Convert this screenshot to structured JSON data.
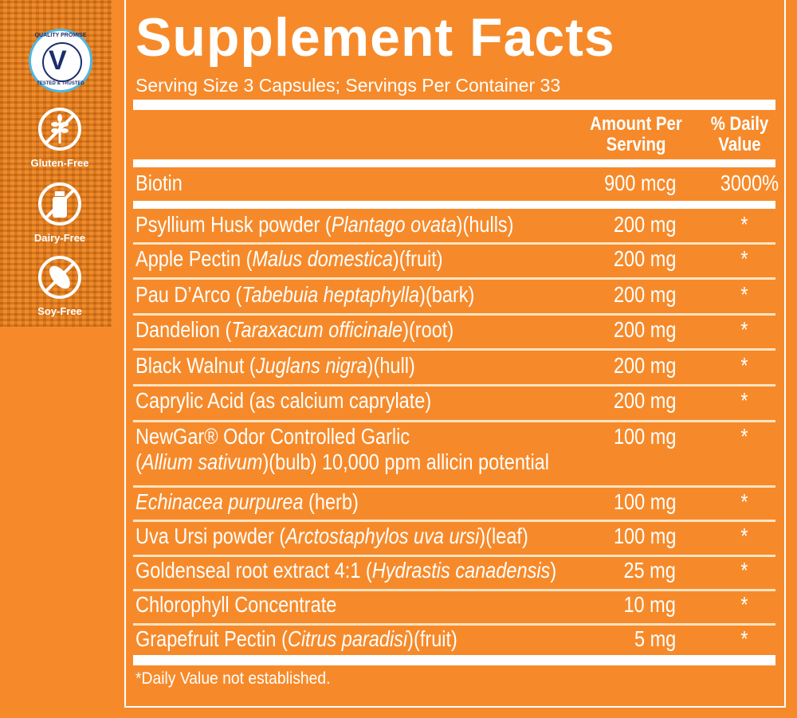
{
  "badges": {
    "quality": {
      "top": "QUALITY PROMISE",
      "bottom": "TESTED & TRUSTED",
      "mark": "V"
    },
    "free": [
      {
        "label": "Gluten-Free",
        "icon": "wheat-crossed-icon"
      },
      {
        "label": "Dairy-Free",
        "icon": "milk-bottle-crossed-icon"
      },
      {
        "label": "Soy-Free",
        "icon": "soybean-crossed-icon"
      }
    ]
  },
  "colors": {
    "background": "#F68A2A",
    "text": "#FFFFFF",
    "quality_navy": "#1B2D6B",
    "quality_blue": "#4FB7E3"
  },
  "facts": {
    "title": "Supplement Facts",
    "serving": "Serving Size 3 Capsules; Servings Per Container 33",
    "header_amount": "Amount Per Serving",
    "header_dv": "% Daily Value",
    "rows": [
      {
        "name": [
          {
            "t": "Biotin"
          }
        ],
        "amount": "900 mcg",
        "dv": "3000%"
      },
      {
        "name": [
          {
            "t": "Psyllium Husk powder ("
          },
          {
            "t": "Plantago ovata",
            "i": true
          },
          {
            "t": ")(hulls)"
          }
        ],
        "amount": "200 mg",
        "dv": "*"
      },
      {
        "name": [
          {
            "t": "Apple Pectin ("
          },
          {
            "t": "Malus domestica",
            "i": true
          },
          {
            "t": ")(fruit)"
          }
        ],
        "amount": "200 mg",
        "dv": "*"
      },
      {
        "name": [
          {
            "t": "Pau D’Arco ("
          },
          {
            "t": "Tabebuia heptaphylla",
            "i": true
          },
          {
            "t": ")(bark)"
          }
        ],
        "amount": "200 mg",
        "dv": "*"
      },
      {
        "name": [
          {
            "t": "Dandelion ("
          },
          {
            "t": "Taraxacum officinale",
            "i": true
          },
          {
            "t": ")(root)"
          }
        ],
        "amount": "200 mg",
        "dv": "*"
      },
      {
        "name": [
          {
            "t": "Black Walnut ("
          },
          {
            "t": "Juglans nigra",
            "i": true
          },
          {
            "t": ")(hull)"
          }
        ],
        "amount": "200 mg",
        "dv": "*"
      },
      {
        "name": [
          {
            "t": "Caprylic Acid (as calcium caprylate)"
          }
        ],
        "amount": "200 mg",
        "dv": "*"
      },
      {
        "name": [
          {
            "t": "NewGar® Odor Controlled Garlic"
          },
          {
            "br": true
          },
          {
            "t": " ("
          },
          {
            "t": "Allium sativum",
            "i": true
          },
          {
            "t": ")(bulb) 10,000 ppm allicin potential"
          }
        ],
        "amount": "100 mg",
        "dv": "*"
      },
      {
        "name": [
          {
            "t": "Echinacea purpurea",
            "i": true
          },
          {
            "t": " (herb)"
          }
        ],
        "amount": "100 mg",
        "dv": "*"
      },
      {
        "name": [
          {
            "t": "Uva Ursi powder ("
          },
          {
            "t": "Arctostaphylos uva ursi",
            "i": true
          },
          {
            "t": ")(leaf)"
          }
        ],
        "amount": "100 mg",
        "dv": "*"
      },
      {
        "name": [
          {
            "t": "Goldenseal root extract 4:1 ("
          },
          {
            "t": "Hydrastis canadensis",
            "i": true
          },
          {
            "t": ")"
          }
        ],
        "amount": "25 mg",
        "dv": "*"
      },
      {
        "name": [
          {
            "t": "Chlorophyll Concentrate"
          }
        ],
        "amount": "10 mg",
        "dv": "*"
      },
      {
        "name": [
          {
            "t": "Grapefruit Pectin ("
          },
          {
            "t": "Citrus paradisi",
            "i": true
          },
          {
            "t": ")(fruit)"
          }
        ],
        "amount": "5 mg",
        "dv": "*"
      }
    ],
    "footnote": "*Daily Value not established."
  }
}
